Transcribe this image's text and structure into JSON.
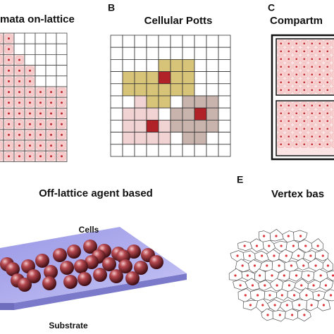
{
  "panels": [
    {
      "title": "mata on-lattice"
    },
    {
      "letter": "B",
      "title": "Cellular Potts"
    },
    {
      "letter": "C",
      "title": "Compartm"
    },
    {
      "title": "Off-lattice agent based",
      "labels": [
        "Cells",
        "Substrate"
      ]
    },
    {
      "letter": "E",
      "title": "Vertex bas"
    }
  ]
}
